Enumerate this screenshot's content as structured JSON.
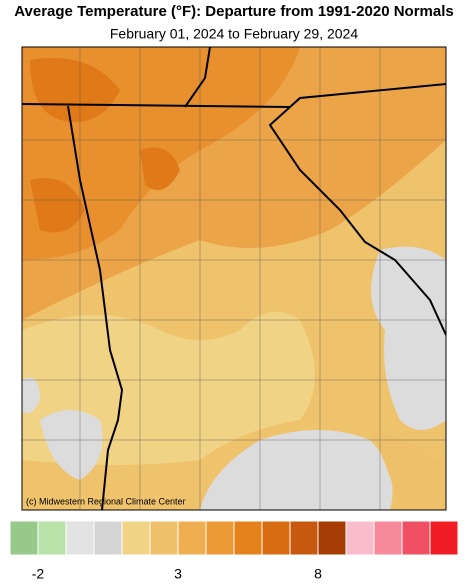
{
  "header": {
    "title": "Average Temperature (°F): Departure from 1991-2020 Normals",
    "subtitle": "February 01, 2024 to February 29, 2024"
  },
  "map": {
    "credit": "(c) Midwestern Regional Climate Center"
  },
  "legend": {
    "colors": [
      "#97c98a",
      "#b9e2a9",
      "#e3e3e3",
      "#d4d4d4",
      "#f1d385",
      "#efc06a",
      "#efae50",
      "#eb9a36",
      "#e6821c",
      "#d86c12",
      "#c65810",
      "#a43c04",
      "#f9bccb",
      "#f6899a",
      "#f05063",
      "#f01e24"
    ],
    "range": [
      -3,
      13
    ],
    "ticks": [
      -2,
      3,
      8
    ]
  }
}
